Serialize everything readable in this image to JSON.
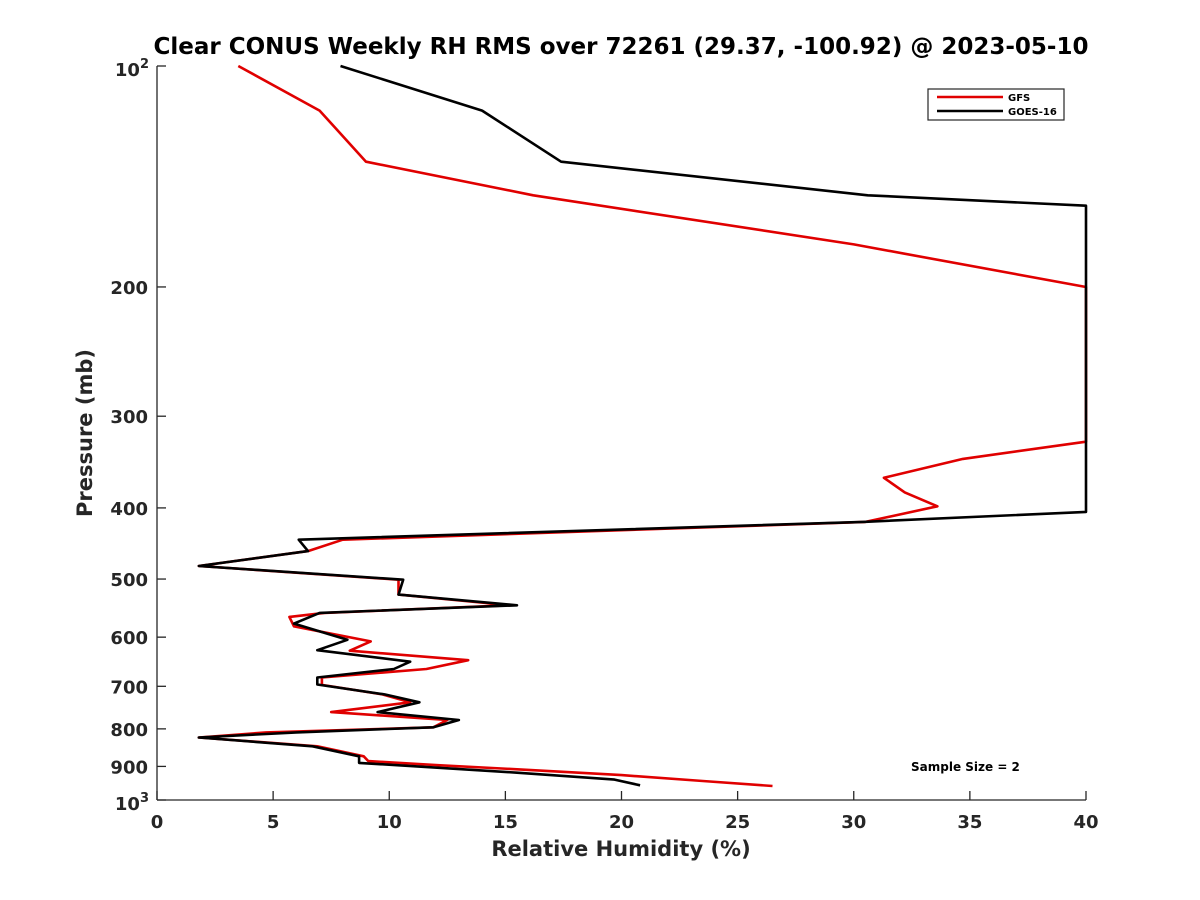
{
  "chart_data": {
    "type": "line",
    "title": "Clear CONUS Weekly RH RMS over 72261 (29.37, -100.92) @ 2023-05-10",
    "xlabel": "Relative Humidity (%)",
    "ylabel": "Pressure (mb)",
    "xlim": [
      0,
      40
    ],
    "ylim": [
      100,
      1000
    ],
    "yscale": "log",
    "y_reversed": true,
    "grid": false,
    "legend_position": "top-right",
    "annotation": "Sample Size = 2",
    "x_ticks": [
      0,
      5,
      10,
      15,
      20,
      25,
      30,
      35,
      40
    ],
    "x_tick_labels": [
      "0",
      "5",
      "10",
      "15",
      "20",
      "25",
      "30",
      "35",
      "40"
    ],
    "y_ticks": [
      {
        "value": 100,
        "base": "10",
        "exp": "2"
      },
      {
        "value": 200,
        "label": "200"
      },
      {
        "value": 300,
        "label": "300"
      },
      {
        "value": 400,
        "label": "400"
      },
      {
        "value": 500,
        "label": "500"
      },
      {
        "value": 600,
        "label": "600"
      },
      {
        "value": 700,
        "label": "700"
      },
      {
        "value": 800,
        "label": "800"
      },
      {
        "value": 900,
        "label": "900"
      },
      {
        "value": 1000,
        "base": "10",
        "exp": "3"
      }
    ],
    "series": [
      {
        "name": "GFS",
        "color": "#e00000",
        "points": [
          [
            3.5,
            100
          ],
          [
            7,
            115
          ],
          [
            9,
            135
          ],
          [
            16.2,
            150
          ],
          [
            30,
            175
          ],
          [
            40,
            200
          ],
          [
            40,
            325
          ],
          [
            34.7,
            343
          ],
          [
            31.3,
            364
          ],
          [
            32.2,
            381
          ],
          [
            33.6,
            398
          ],
          [
            30.5,
            418
          ],
          [
            8,
            442
          ],
          [
            6.5,
            458
          ],
          [
            1.8,
            480
          ],
          [
            10.4,
            501
          ],
          [
            10.4,
            525
          ],
          [
            15.2,
            543
          ],
          [
            7.2,
            556
          ],
          [
            5.7,
            563
          ],
          [
            5.9,
            580
          ],
          [
            9.2,
            608
          ],
          [
            8.3,
            626
          ],
          [
            13.4,
            645
          ],
          [
            11.6,
            663
          ],
          [
            7.1,
            681
          ],
          [
            7.1,
            697
          ],
          [
            9.7,
            718
          ],
          [
            10.9,
            736
          ],
          [
            7.5,
            759
          ],
          [
            12.5,
            778
          ],
          [
            11.9,
            796
          ],
          [
            4.7,
            809
          ],
          [
            1.8,
            822
          ],
          [
            6.9,
            845
          ],
          [
            8.9,
            872
          ],
          [
            9.1,
            885
          ],
          [
            12.2,
            897
          ],
          [
            16,
            910
          ],
          [
            20,
            925
          ],
          [
            23.5,
            942
          ],
          [
            26.5,
            957
          ]
        ]
      },
      {
        "name": "GOES-16",
        "color": "#000000",
        "points": [
          [
            7.9,
            100
          ],
          [
            14,
            115
          ],
          [
            17.4,
            135
          ],
          [
            30.6,
            150
          ],
          [
            40,
            155
          ],
          [
            40,
            405
          ],
          [
            30.4,
            418
          ],
          [
            6.1,
            442
          ],
          [
            6.5,
            458
          ],
          [
            1.8,
            480
          ],
          [
            10.6,
            501
          ],
          [
            10.4,
            525
          ],
          [
            15.5,
            543
          ],
          [
            7,
            556
          ],
          [
            5.9,
            575
          ],
          [
            8.2,
            605
          ],
          [
            6.9,
            625
          ],
          [
            10.9,
            648
          ],
          [
            10.2,
            663
          ],
          [
            6.9,
            681
          ],
          [
            6.9,
            696
          ],
          [
            9.8,
            718
          ],
          [
            11.3,
            736
          ],
          [
            9.5,
            759
          ],
          [
            13,
            778
          ],
          [
            11.9,
            796
          ],
          [
            6,
            809
          ],
          [
            1.8,
            822
          ],
          [
            6.7,
            845
          ],
          [
            8.7,
            872
          ],
          [
            8.7,
            890
          ],
          [
            11.2,
            900
          ],
          [
            15.5,
            918
          ],
          [
            19.7,
            938
          ],
          [
            20.8,
            955
          ]
        ]
      }
    ]
  }
}
